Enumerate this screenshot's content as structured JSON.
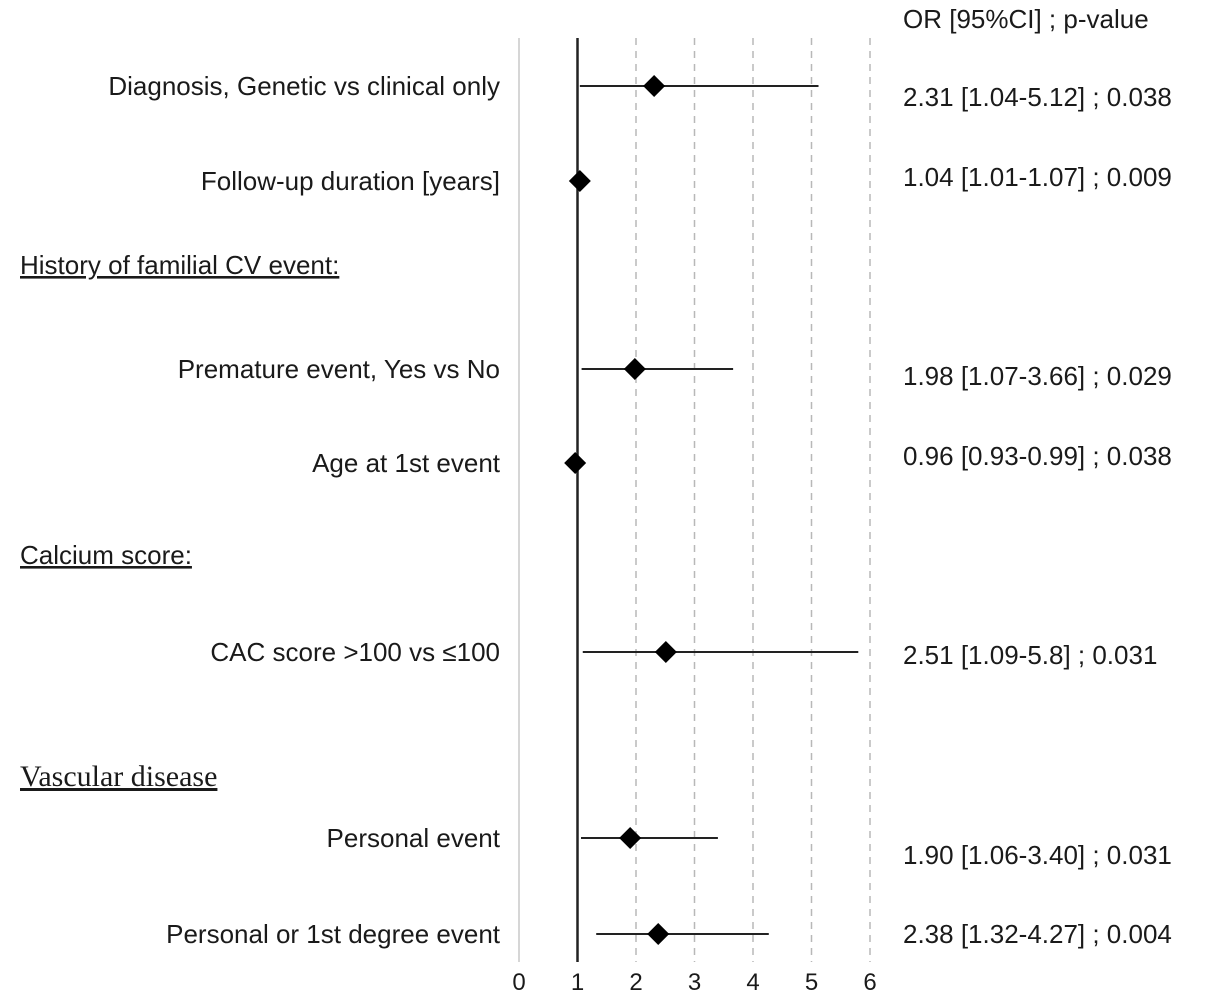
{
  "chart_data": {
    "type": "forest",
    "xlim": [
      0,
      6
    ],
    "x_ticks": [
      "0",
      "1",
      "2",
      "3",
      "4",
      "5",
      "6"
    ],
    "reference_line": 1,
    "grid": "vertical-dashed",
    "header": "OR [95%CI] ; p-value",
    "rows": [
      {
        "kind": "item",
        "label": "Diagnosis, Genetic vs clinical only",
        "or": 2.31,
        "lo": 1.04,
        "hi": 5.12,
        "text": "2.31 [1.04-5.12] ; 0.038"
      },
      {
        "kind": "item",
        "label": "Follow-up duration [years]",
        "or": 1.04,
        "lo": 1.01,
        "hi": 1.07,
        "text": "1.04 [1.01-1.07] ; 0.009"
      },
      {
        "kind": "section",
        "label": "History of familial CV event:"
      },
      {
        "kind": "item",
        "label": "Premature event, Yes vs No",
        "or": 1.98,
        "lo": 1.07,
        "hi": 3.66,
        "text": "1.98 [1.07-3.66] ; 0.029"
      },
      {
        "kind": "item",
        "label": "Age at 1st event",
        "or": 0.96,
        "lo": 0.93,
        "hi": 0.99,
        "text": "0.96 [0.93-0.99] ; 0.038"
      },
      {
        "kind": "section",
        "label": "Calcium score:"
      },
      {
        "kind": "item",
        "label": "CAC score >100 vs ≤100",
        "or": 2.51,
        "lo": 1.09,
        "hi": 5.8,
        "text": "2.51 [1.09-5.8] ; 0.031"
      },
      {
        "kind": "section",
        "label": "Vascular  disease",
        "serif": true
      },
      {
        "kind": "item",
        "label": "Personal event",
        "or": 1.9,
        "lo": 1.06,
        "hi": 3.4,
        "text": "1.90 [1.06-3.40] ; 0.031"
      },
      {
        "kind": "item",
        "label": "Personal or 1st degree event",
        "or": 2.38,
        "lo": 1.32,
        "hi": 4.27,
        "text": "2.38 [1.32-4.27] ; 0.004"
      }
    ]
  }
}
